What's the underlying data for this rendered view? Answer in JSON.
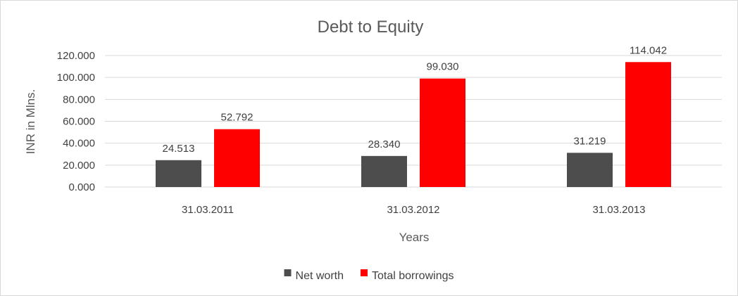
{
  "chart_data": {
    "type": "bar",
    "title": "Debt to Equity",
    "xlabel": "Years",
    "ylabel": "INR in Mlns.",
    "categories": [
      "31.03.2011",
      "31.03.2012",
      "31.03.2013"
    ],
    "series": [
      {
        "name": "Net worth",
        "color": "#4d4d4d",
        "values": [
          24.513,
          28.34,
          31.219
        ],
        "labels": [
          "24.513",
          "28.340",
          "31.219"
        ]
      },
      {
        "name": "Total borrowings",
        "color": "#ff0000",
        "values": [
          52.792,
          99.03,
          114.042
        ],
        "labels": [
          "52.792",
          "99.030",
          "114.042"
        ]
      }
    ],
    "ylim": [
      0,
      120
    ],
    "yticks": [
      "0.000",
      "20.000",
      "40.000",
      "60.000",
      "80.000",
      "100.000",
      "120.000"
    ],
    "grid": true,
    "legend_position": "bottom"
  }
}
